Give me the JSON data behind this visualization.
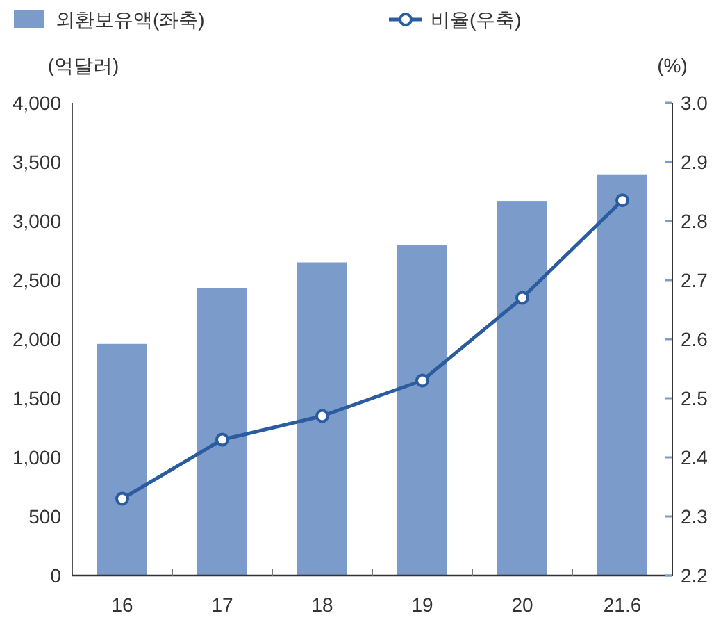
{
  "chart_data": {
    "type": "bar",
    "categories": [
      "16",
      "17",
      "18",
      "19",
      "20",
      "21.6"
    ],
    "ylabel": "(억달러)",
    "y2label": "(%)",
    "legend": "top",
    "grid": false,
    "ylim": [
      0,
      4000
    ],
    "yticks": [
      0,
      {
        "value": 500,
        "label": "500"
      },
      {
        "value": 1000,
        "label": "1,000"
      },
      {
        "value": 1500,
        "label": "1,500"
      },
      {
        "value": 2000,
        "label": "2,000"
      },
      {
        "value": 2500,
        "label": "2,500"
      },
      {
        "value": 3000,
        "label": "3,000"
      },
      {
        "value": 3500,
        "label": "3,500"
      },
      {
        "value": 4000,
        "label": "4,000"
      }
    ],
    "y2lim": [
      2.2,
      3.0
    ],
    "y2ticks": [
      2.2,
      2.3,
      2.4,
      2.5,
      2.6,
      2.7,
      2.8,
      2.9,
      {
        "value": 3.0,
        "label": "3.0"
      }
    ],
    "series": [
      {
        "name": "외환보유액(좌축)",
        "color": "#7b9bca",
        "values": [
          1960,
          2430,
          2650,
          2800,
          3170,
          3390
        ]
      },
      {
        "name": "비율(우축)",
        "type": "line",
        "axis": "y2",
        "color": "#2b5c9f",
        "marker": "circle",
        "line_style": "solid",
        "values": [
          2.33,
          2.43,
          2.47,
          2.53,
          2.67,
          2.835
        ]
      }
    ]
  }
}
